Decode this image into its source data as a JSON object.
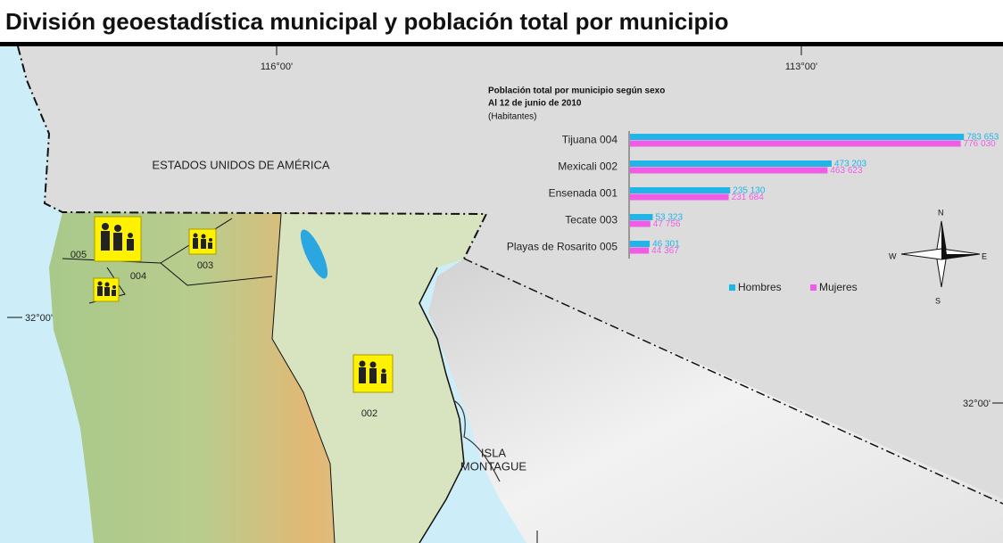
{
  "title": "División geoestadística municipal y población total por municipio",
  "map": {
    "longitude_labels": [
      "116°00'",
      "113°00'"
    ],
    "latitude_labels": [
      "32°00'",
      "32°00'"
    ],
    "country_label": "ESTADOS UNIDOS DE AMÉRICA",
    "island_label": [
      "ISLA",
      "MONTAGUE"
    ],
    "municipality_codes": [
      "005",
      "004",
      "003",
      "002"
    ],
    "compass": {
      "north": "N",
      "south": "S",
      "west": "W",
      "east": "E"
    }
  },
  "chart_data": {
    "type": "bar",
    "orientation": "horizontal",
    "title": "Población total por municipio según sexo",
    "subtitle": "Al 12 de junio de 2010",
    "unit_label": "(Habitantes)",
    "categories": [
      "Tijuana 004",
      "Mexicali 002",
      "Ensenada 001",
      "Tecate 003",
      "Playas de Rosarito 005"
    ],
    "series": [
      {
        "name": "Hombres",
        "color": "#21b4e6",
        "values": [
          783653,
          473203,
          235130,
          53323,
          46301
        ],
        "value_labels": [
          "783 653",
          "473 203",
          "235 130",
          "53 323",
          "46 301"
        ]
      },
      {
        "name": "Mujeres",
        "color": "#f05ce6",
        "values": [
          776030,
          463623,
          231684,
          47756,
          44367
        ],
        "value_labels": [
          "776 030",
          "463 623",
          "231 684",
          "47 756",
          "44 367"
        ]
      }
    ],
    "xlim": [
      0,
      800000
    ],
    "legend": "bottom"
  }
}
